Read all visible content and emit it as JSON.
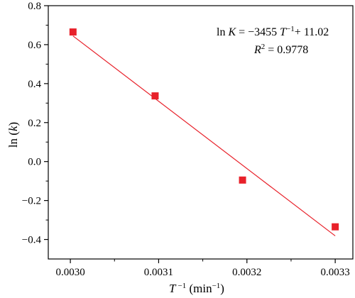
{
  "chart_data": {
    "type": "scatter",
    "xlabel": "T −1 (min−1)",
    "xlabel_parts": {
      "symbol": "T",
      "sup1": "−1",
      "unit": " (min",
      "sup2": "−1",
      "close": ")"
    },
    "ylabel": "ln (k)",
    "ylabel_parts": {
      "pre": "ln (",
      "var": "k",
      "post": ")"
    },
    "xlim": [
      0.002975,
      0.00332
    ],
    "ylim": [
      -0.5,
      0.8
    ],
    "x_ticks": [
      {
        "value": 0.003,
        "label": "0.0030"
      },
      {
        "value": 0.0031,
        "label": "0.0031"
      },
      {
        "value": 0.0032,
        "label": "0.0032"
      },
      {
        "value": 0.0033,
        "label": "0.0033"
      }
    ],
    "y_ticks": [
      {
        "value": -0.4,
        "label": "−0.4"
      },
      {
        "value": -0.2,
        "label": "−0.2"
      },
      {
        "value": 0.0,
        "label": "0.0"
      },
      {
        "value": 0.2,
        "label": "0.2"
      },
      {
        "value": 0.4,
        "label": "0.4"
      },
      {
        "value": 0.6,
        "label": "0.6"
      },
      {
        "value": 0.8,
        "label": "0.8"
      }
    ],
    "grid": false,
    "points": [
      {
        "x": 0.003003,
        "y": 0.665
      },
      {
        "x": 0.003096,
        "y": 0.337
      },
      {
        "x": 0.003195,
        "y": -0.095
      },
      {
        "x": 0.0033,
        "y": -0.335
      }
    ],
    "fit": {
      "slope": -3455,
      "intercept": 11.02,
      "x_range": [
        0.003003,
        0.0033
      ]
    },
    "annotation": {
      "line1": {
        "a": "ln ",
        "b": "K",
        "c": " = −3455 ",
        "d": "T",
        "e": "−1",
        "f": "+ 11.02"
      },
      "line2": {
        "a": "R",
        "b": "2",
        "c": " = 0.9778"
      }
    },
    "colors": {
      "marker": "#e8212a",
      "line": "#e8212a",
      "axis": "#000000"
    }
  }
}
